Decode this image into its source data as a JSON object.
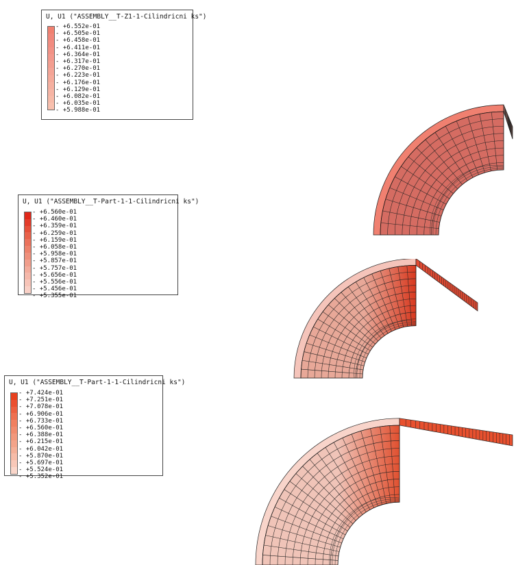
{
  "legends": [
    {
      "id": "legend-1",
      "title": "U, U1 (\"ASSEMBLY__T-Z1-1-Cilindricni ks\")",
      "values": [
        "+6.552e-01",
        "+6.505e-01",
        "+6.458e-01",
        "+6.411e-01",
        "+6.364e-01",
        "+6.317e-01",
        "+6.270e-01",
        "+6.223e-01",
        "+6.176e-01",
        "+6.129e-01",
        "+6.082e-01",
        "+6.035e-01",
        "+5.988e-01"
      ],
      "colors": [
        "#f08070",
        "#f0867a",
        "#f18c80",
        "#f29286",
        "#f3988c",
        "#f39e90",
        "#f4a496",
        "#f5aa9a",
        "#f5b0a0",
        "#f6b4a4",
        "#f7baa8",
        "#f8c0ae"
      ]
    },
    {
      "id": "legend-2",
      "title": "U, U1 (\"ASSEMBLY__T-Part-1-1-Cilindricni ks\")",
      "values": [
        "+6.560e-01",
        "+6.460e-01",
        "+6.359e-01",
        "+6.259e-01",
        "+6.159e-01",
        "+6.058e-01",
        "+5.958e-01",
        "+5.857e-01",
        "+5.757e-01",
        "+5.656e-01",
        "+5.556e-01",
        "+5.456e-01",
        "+5.355e-01"
      ],
      "colors": [
        "#e0281a",
        "#e33c2a",
        "#e6503a",
        "#e9624b",
        "#eb725c",
        "#ed826c",
        "#ef907c",
        "#f19e8c",
        "#f3ac9c",
        "#f5b8aa",
        "#f7c4b8",
        "#f9d0c6"
      ]
    },
    {
      "id": "legend-3",
      "title": "U, U1 (\"ASSEMBLY__T-Part-1-1-Cilindricni ks\")",
      "values": [
        "+7.424e-01",
        "+7.251e-01",
        "+7.078e-01",
        "+6.906e-01",
        "+6.733e-01",
        "+6.560e-01",
        "+6.388e-01",
        "+6.215e-01",
        "+6.042e-01",
        "+5.870e-01",
        "+5.697e-01",
        "+5.524e-01",
        "+5.352e-01"
      ],
      "colors": [
        "#e8401e",
        "#ea5030",
        "#ec6040",
        "#ee7050",
        "#f08060",
        "#f18c6e",
        "#f2987c",
        "#f3a48a",
        "#f4b098",
        "#f6bca8",
        "#f8c8b8",
        "#fad6ca"
      ]
    }
  ],
  "views": [
    {
      "id": "view-1",
      "outer": "#f08070",
      "faceFrom": "#d56c62",
      "faceTo": "#d56c62",
      "stripe": "#f3a090"
    },
    {
      "id": "view-2",
      "outer": "#f5c4ba",
      "faceFrom": "#e8a898",
      "faceTo": "#d8391f",
      "stripe": "#e04a32"
    },
    {
      "id": "view-3",
      "outer": "#f8d4ca",
      "faceFrom": "#f0c4b8",
      "faceTo": "#e05030",
      "stripe": "#e8502e"
    }
  ]
}
